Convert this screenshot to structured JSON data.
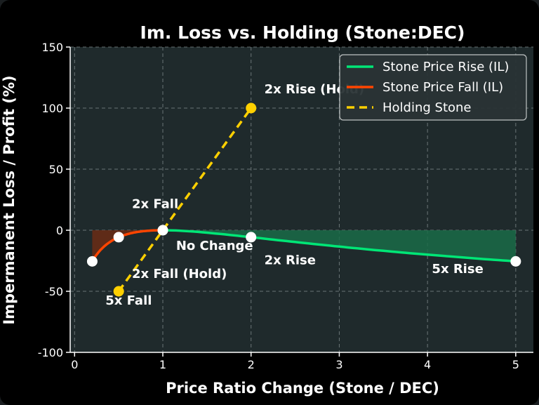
{
  "colors": {
    "background": "#000000",
    "plot_area": "#1f2a2c",
    "grid": "#8a9496",
    "rise": "#00e676",
    "rise_fill": "#1a6b48",
    "fall": "#ff4500",
    "fall_fill": "#6b2c15",
    "hold": "#ffd000",
    "marker_white": "#ffffff"
  },
  "chart_data": {
    "type": "line",
    "title": "Im. Loss vs. Holding (Stone:DEC)",
    "xlabel": "Price Ratio Change (Stone / DEC)",
    "ylabel": "Impermanent Loss / Profit (%)",
    "xlim": [
      -0.05,
      5.2
    ],
    "ylim": [
      -100,
      150
    ],
    "xticks": [
      0,
      1,
      2,
      3,
      4,
      5
    ],
    "yticks": [
      -100,
      -50,
      0,
      50,
      100,
      150
    ],
    "grid": true,
    "legend_position": "top-right",
    "series": [
      {
        "name": "Stone Price Rise (IL)",
        "curve": "impermanent_loss",
        "x_range": [
          1,
          5
        ],
        "markers": [
          {
            "x": 1,
            "y": 0
          },
          {
            "x": 2,
            "y": -5.7
          },
          {
            "x": 5,
            "y": -25.5
          }
        ],
        "filled": true
      },
      {
        "name": "Stone Price Fall (IL)",
        "curve": "impermanent_loss",
        "x_range": [
          0.2,
          1
        ],
        "markers": [
          {
            "x": 0.2,
            "y": -25.5
          },
          {
            "x": 0.5,
            "y": -5.7
          },
          {
            "x": 1,
            "y": 0
          }
        ],
        "filled": true
      },
      {
        "name": "Holding Stone",
        "curve": "linear",
        "dashed": true,
        "points": [
          {
            "x": 0.5,
            "y": -50
          },
          {
            "x": 2,
            "y": 100
          }
        ],
        "markers": [
          {
            "x": 0.5,
            "y": -50
          },
          {
            "x": 2,
            "y": 100
          }
        ]
      }
    ],
    "annotations": [
      {
        "text": "2x Rise (Hold)",
        "x": 2.15,
        "y": 112
      },
      {
        "text": "2x Fall",
        "x": 0.65,
        "y": 18
      },
      {
        "text": "No Change",
        "x": 1.15,
        "y": -16
      },
      {
        "text": "2x Rise",
        "x": 2.15,
        "y": -28
      },
      {
        "text": "5x Rise",
        "x": 4.05,
        "y": -35
      },
      {
        "text": "2x Fall (Hold)",
        "x": 0.65,
        "y": -39
      },
      {
        "text": "5x Fall",
        "x": 0.35,
        "y": -61
      }
    ]
  }
}
